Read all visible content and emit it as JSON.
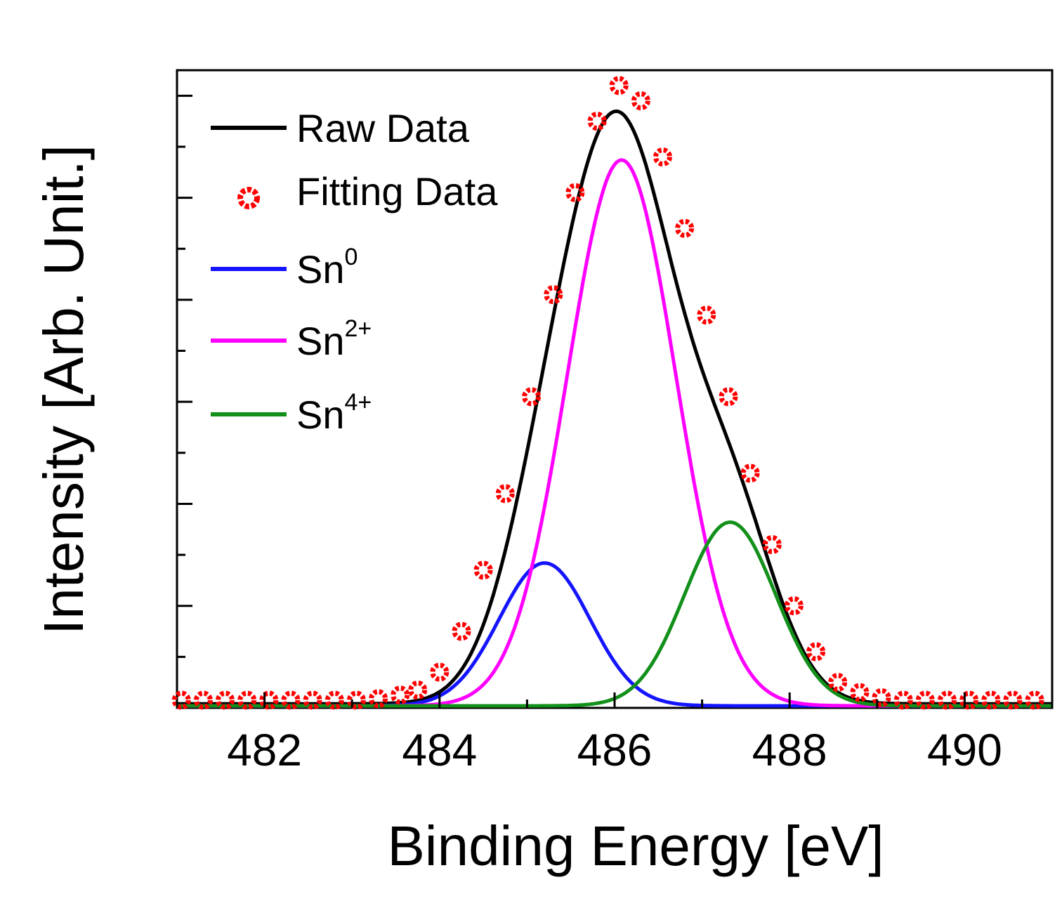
{
  "chart_data": {
    "type": "line",
    "title": "",
    "xlabel": "Binding Energy [eV]",
    "ylabel": "Intensity [Arb. Unit.]",
    "xlim": [
      481.0,
      491.0
    ],
    "ylim": [
      0,
      125
    ],
    "xticks": [
      482,
      484,
      486,
      488,
      490
    ],
    "xtick_labels": [
      "482",
      "484",
      "486",
      "488",
      "490"
    ],
    "y_tick_labels_shown": false,
    "grid": false,
    "legend_position": "top-left",
    "components": [
      {
        "name": "Sn",
        "sup": "0",
        "color": "#1414ff",
        "amplitude": 28,
        "center": 485.2,
        "sigma": 0.52
      },
      {
        "name": "Sn",
        "sup": "2+",
        "color": "#ff00ff",
        "amplitude": 107,
        "center": 486.08,
        "sigma": 0.62
      },
      {
        "name": "Sn",
        "sup": "4+",
        "color": "#12901a",
        "amplitude": 36,
        "center": 487.32,
        "sigma": 0.52
      }
    ],
    "series": [
      {
        "name": "Raw Data",
        "style": "line",
        "color": "#000000"
      },
      {
        "name": "Fitting Data",
        "style": "marker",
        "marker": "circle-open",
        "color": "#ff0000",
        "x": [
          481.05,
          481.3,
          481.55,
          481.8,
          482.05,
          482.3,
          482.55,
          482.8,
          483.05,
          483.3,
          483.55,
          483.75,
          484.0,
          484.25,
          484.5,
          484.75,
          485.05,
          485.3,
          485.55,
          485.8,
          486.05,
          486.3,
          486.55,
          486.8,
          487.05,
          487.3,
          487.55,
          487.8,
          488.05,
          488.3,
          488.55,
          488.8,
          489.05,
          489.3,
          489.55,
          489.8,
          490.05,
          490.3,
          490.55,
          490.8
        ],
        "y": [
          1.5,
          1.5,
          1.5,
          1.5,
          1.5,
          1.5,
          1.5,
          1.5,
          1.5,
          1.8,
          2.5,
          3.5,
          7,
          15,
          27,
          42,
          61,
          81,
          101,
          115,
          122,
          119,
          108,
          94,
          77,
          61,
          46,
          32,
          20,
          11,
          5,
          3,
          2,
          1.5,
          1.5,
          1.5,
          1.5,
          1.5,
          1.5,
          1.5
        ]
      }
    ],
    "legend": [
      {
        "label": "Raw Data",
        "sup": ""
      },
      {
        "label": "Fitting Data",
        "sup": ""
      },
      {
        "label": "Sn",
        "sup": "0"
      },
      {
        "label": "Sn",
        "sup": "2+"
      },
      {
        "label": "Sn",
        "sup": "4+"
      }
    ]
  }
}
